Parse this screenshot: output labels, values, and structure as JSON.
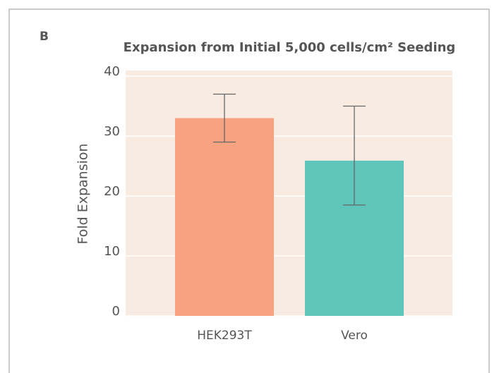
{
  "chart_data": {
    "type": "bar",
    "panel_label": "B",
    "title": "Expansion from Initial 5,000 cells/cm² Seeding",
    "y_label": "Fold Expansion",
    "categories": [
      "HEK293T",
      "Vero"
    ],
    "values": [
      33,
      25.9
    ],
    "error_low": [
      29,
      18.5
    ],
    "error_high": [
      37,
      35
    ],
    "colors": [
      "#f7a382",
      "#5fc5bb"
    ],
    "ylim": [
      0,
      40
    ],
    "yticks": [
      0,
      10,
      20,
      30,
      40
    ],
    "grid": true
  }
}
